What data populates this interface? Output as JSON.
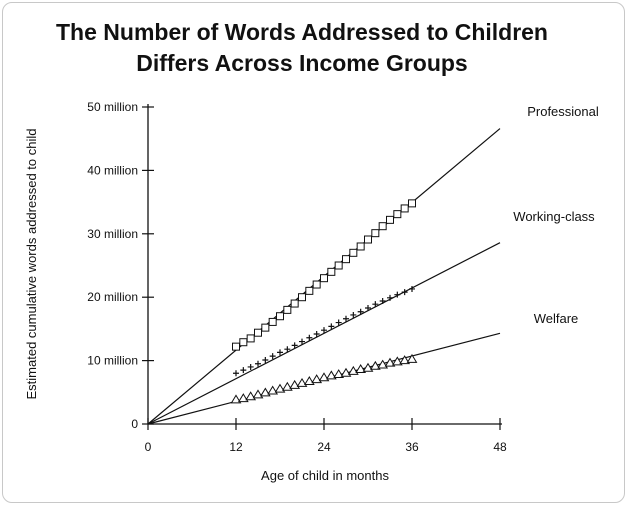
{
  "chart_data": {
    "type": "scatter",
    "title": "The Number of Words Addressed to Children",
    "subtitle": "Differs Across Income Groups",
    "xlabel": "Age of child in months",
    "ylabel": "Estimated cumulative words addressed to child",
    "xlim": [
      0,
      48
    ],
    "ylim": [
      0,
      50000000
    ],
    "x_ticks": [
      0,
      12,
      24,
      36,
      48
    ],
    "x_tick_labels": [
      "0",
      "12",
      "24",
      "36",
      "48"
    ],
    "y_ticks": [
      0,
      10000000,
      20000000,
      30000000,
      40000000,
      50000000
    ],
    "y_tick_labels": [
      "0",
      "10 million",
      "20 million",
      "30 million",
      "40 million",
      "50 million"
    ],
    "grid": false,
    "legend": "none",
    "series": [
      {
        "name": "Professional",
        "marker": "square",
        "trend_end": [
          48,
          46600000
        ],
        "x": [
          12,
          13,
          14,
          15,
          16,
          17,
          18,
          19,
          20,
          21,
          22,
          23,
          24,
          25,
          26,
          27,
          28,
          29,
          30,
          31,
          32,
          33,
          34,
          35,
          36
        ],
        "y": [
          12200000,
          12900000,
          13500000,
          14400000,
          15200000,
          16100000,
          17000000,
          18000000,
          19000000,
          20000000,
          21000000,
          22000000,
          23000000,
          24000000,
          25000000,
          26000000,
          27000000,
          28000000,
          29100000,
          30100000,
          31200000,
          32200000,
          33100000,
          34000000,
          34800000
        ]
      },
      {
        "name": "Working-class",
        "marker": "plus",
        "trend_end": [
          48,
          28600000
        ],
        "x": [
          12,
          13,
          14,
          15,
          16,
          17,
          18,
          19,
          20,
          21,
          22,
          23,
          24,
          25,
          26,
          27,
          28,
          29,
          30,
          31,
          32,
          33,
          34,
          35,
          36
        ],
        "y": [
          8000000,
          8500000,
          9000000,
          9500000,
          10100000,
          10700000,
          11300000,
          11800000,
          12400000,
          13000000,
          13600000,
          14200000,
          14800000,
          15400000,
          16000000,
          16600000,
          17200000,
          17700000,
          18300000,
          18900000,
          19400000,
          19900000,
          20400000,
          20800000,
          21300000
        ]
      },
      {
        "name": "Welfare",
        "marker": "triangle",
        "trend_end": [
          48,
          14300000
        ],
        "x": [
          12,
          13,
          14,
          15,
          16,
          17,
          18,
          19,
          20,
          21,
          22,
          23,
          24,
          25,
          26,
          27,
          28,
          29,
          30,
          31,
          32,
          33,
          34,
          35,
          36
        ],
        "y": [
          3800000,
          4000000,
          4300000,
          4600000,
          4900000,
          5200000,
          5500000,
          5800000,
          6100000,
          6400000,
          6700000,
          7000000,
          7300000,
          7600000,
          7800000,
          8000000,
          8300000,
          8600000,
          8800000,
          9100000,
          9300000,
          9600000,
          9800000,
          10000000,
          10200000
        ]
      }
    ]
  }
}
